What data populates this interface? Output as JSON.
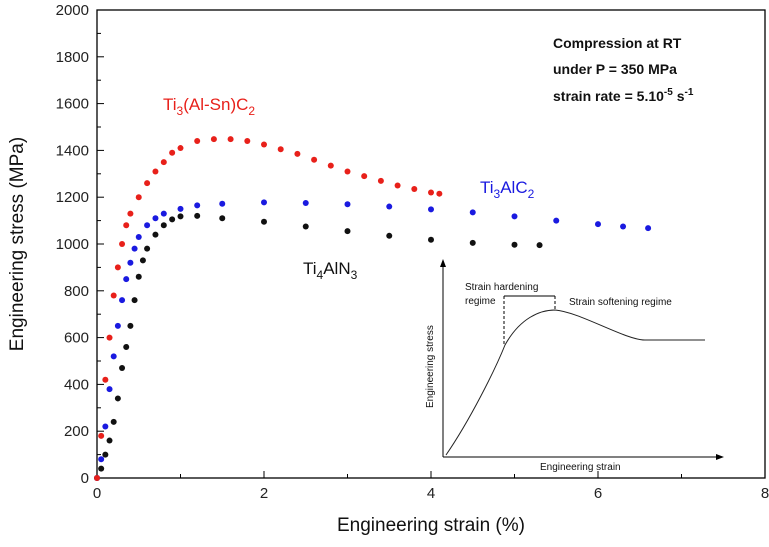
{
  "chart_data": {
    "type": "scatter",
    "title": "",
    "xlabel": "Engineering strain (%)",
    "ylabel": "Engineering stress (MPa)",
    "xlim": [
      0,
      8
    ],
    "ylim": [
      0,
      2000
    ],
    "xticks": [
      "0",
      "2",
      "4",
      "6",
      "8"
    ],
    "yticks": [
      "0",
      "200",
      "400",
      "600",
      "800",
      "1000",
      "1200",
      "1400",
      "1600",
      "1800",
      "2000"
    ],
    "grid": false,
    "annotation": {
      "line1": "Compression at RT",
      "line2": "under P = 350 MPa",
      "line3_prefix": "strain rate = 5.10",
      "line3_sup": "-5",
      "line3_mid": " s",
      "line3_sup2": "-1"
    },
    "series": [
      {
        "name": "Ti3(Al-Sn)C2",
        "label_parts": [
          "Ti",
          "3",
          "(Al-Sn)C",
          "2"
        ],
        "color": "#e8201a",
        "points": [
          [
            0,
            0
          ],
          [
            0.05,
            180
          ],
          [
            0.1,
            420
          ],
          [
            0.15,
            600
          ],
          [
            0.2,
            780
          ],
          [
            0.25,
            900
          ],
          [
            0.3,
            1000
          ],
          [
            0.35,
            1080
          ],
          [
            0.4,
            1130
          ],
          [
            0.5,
            1200
          ],
          [
            0.6,
            1260
          ],
          [
            0.7,
            1310
          ],
          [
            0.8,
            1350
          ],
          [
            0.9,
            1390
          ],
          [
            1.0,
            1410
          ],
          [
            1.2,
            1440
          ],
          [
            1.4,
            1448
          ],
          [
            1.6,
            1448
          ],
          [
            1.8,
            1440
          ],
          [
            2.0,
            1425
          ],
          [
            2.2,
            1405
          ],
          [
            2.4,
            1385
          ],
          [
            2.6,
            1360
          ],
          [
            2.8,
            1335
          ],
          [
            3.0,
            1310
          ],
          [
            3.2,
            1290
          ],
          [
            3.4,
            1270
          ],
          [
            3.6,
            1250
          ],
          [
            3.8,
            1235
          ],
          [
            4.0,
            1220
          ],
          [
            4.1,
            1215
          ]
        ]
      },
      {
        "name": "Ti3AlC2",
        "label_parts": [
          "Ti",
          "3",
          "AlC",
          "2"
        ],
        "color": "#1a1ae0",
        "points": [
          [
            0,
            0
          ],
          [
            0.05,
            80
          ],
          [
            0.1,
            220
          ],
          [
            0.15,
            380
          ],
          [
            0.2,
            520
          ],
          [
            0.25,
            650
          ],
          [
            0.3,
            760
          ],
          [
            0.35,
            850
          ],
          [
            0.4,
            920
          ],
          [
            0.45,
            980
          ],
          [
            0.5,
            1030
          ],
          [
            0.6,
            1080
          ],
          [
            0.7,
            1110
          ],
          [
            0.8,
            1130
          ],
          [
            1.0,
            1150
          ],
          [
            1.2,
            1165
          ],
          [
            1.5,
            1172
          ],
          [
            2.0,
            1178
          ],
          [
            2.5,
            1175
          ],
          [
            3.0,
            1170
          ],
          [
            3.5,
            1160
          ],
          [
            4.0,
            1148
          ],
          [
            4.5,
            1135
          ],
          [
            5.0,
            1118
          ],
          [
            5.5,
            1100
          ],
          [
            6.0,
            1085
          ],
          [
            6.3,
            1075
          ],
          [
            6.6,
            1068
          ]
        ]
      },
      {
        "name": "Ti4AlN3",
        "label_parts": [
          "Ti",
          "4",
          "AlN",
          "3"
        ],
        "color": "#111111",
        "points": [
          [
            0,
            0
          ],
          [
            0.05,
            40
          ],
          [
            0.1,
            100
          ],
          [
            0.15,
            160
          ],
          [
            0.2,
            240
          ],
          [
            0.25,
            340
          ],
          [
            0.3,
            470
          ],
          [
            0.35,
            560
          ],
          [
            0.4,
            650
          ],
          [
            0.45,
            760
          ],
          [
            0.5,
            860
          ],
          [
            0.55,
            930
          ],
          [
            0.6,
            980
          ],
          [
            0.7,
            1040
          ],
          [
            0.8,
            1080
          ],
          [
            0.9,
            1105
          ],
          [
            1.0,
            1118
          ],
          [
            1.2,
            1120
          ],
          [
            1.5,
            1110
          ],
          [
            2.0,
            1095
          ],
          [
            2.5,
            1075
          ],
          [
            3.0,
            1055
          ],
          [
            3.5,
            1035
          ],
          [
            4.0,
            1018
          ],
          [
            4.5,
            1005
          ],
          [
            5.0,
            997
          ],
          [
            5.3,
            995
          ]
        ]
      }
    ],
    "inset": {
      "xlabel": "Engineering strain",
      "ylabel": "Engineering stress",
      "hardening_label_1": "Strain hardening",
      "hardening_label_2": "regime",
      "softening_label": "Strain softening regime"
    }
  }
}
